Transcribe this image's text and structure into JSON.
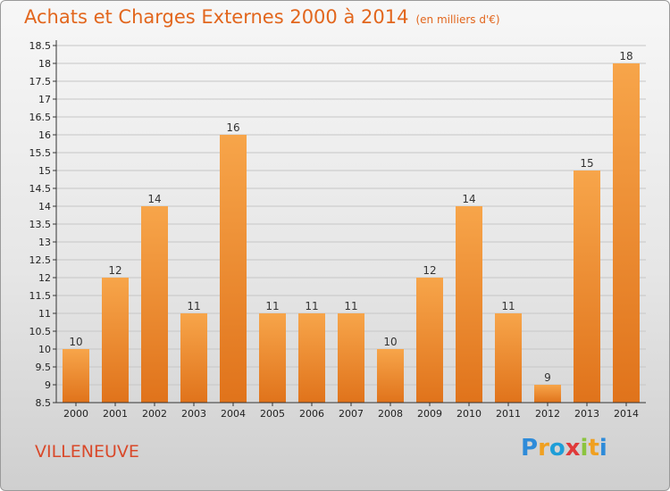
{
  "header": {
    "title": "Achats et Charges Externes 2000 à 2014",
    "subtitle": "(en milliers d'€)"
  },
  "footer": {
    "city": "VILLENEUVE",
    "logo_letters": [
      "P",
      "r",
      "o",
      "x",
      "i",
      "t",
      "i"
    ],
    "logo_colors": [
      "#2e8bd9",
      "#f0a020",
      "#1e9ed8",
      "#e03a3a",
      "#8bc43f",
      "#f0a020",
      "#2e8bd9"
    ]
  },
  "colors": {
    "bar_light": "#f7a54a",
    "bar_dark": "#e0731b",
    "title": "#e2661d",
    "city": "#d9492a",
    "grid": "#c6c6c6"
  },
  "chart_data": {
    "type": "bar",
    "title": "Achats et Charges Externes 2000 à 2014",
    "subtitle": "(en milliers d'€)",
    "xlabel": "",
    "ylabel": "",
    "categories": [
      "2000",
      "2001",
      "2002",
      "2003",
      "2004",
      "2005",
      "2006",
      "2007",
      "2008",
      "2009",
      "2010",
      "2011",
      "2012",
      "2013",
      "2014"
    ],
    "values": [
      10,
      12,
      14,
      11,
      16,
      11,
      11,
      11,
      10,
      12,
      14,
      11,
      9,
      15,
      18
    ],
    "ylim": [
      8.5,
      18.5
    ],
    "ytick_step": 0.5,
    "yticks": [
      "8.5",
      "9",
      "9.5",
      "10",
      "10.5",
      "11",
      "11.5",
      "12",
      "12.5",
      "13",
      "13.5",
      "14",
      "14.5",
      "15",
      "15.5",
      "16",
      "16.5",
      "17",
      "17.5",
      "18",
      "18.5"
    ],
    "grid": true,
    "legend": "none"
  }
}
